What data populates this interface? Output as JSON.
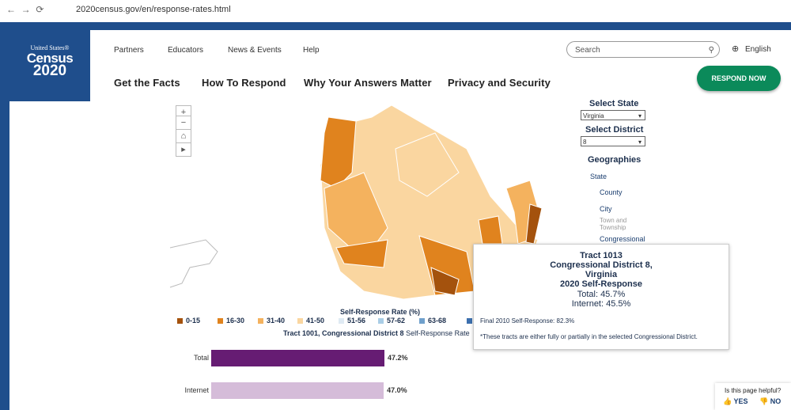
{
  "browser": {
    "url": "2020census.gov/en/response-rates.html"
  },
  "header": {
    "logo": [
      "United States®",
      "Census",
      "2020"
    ],
    "top_nav": [
      "Partners",
      "Educators",
      "News & Events",
      "Help"
    ],
    "search_placeholder": "Search",
    "language": "English",
    "main_nav": [
      "Get the Facts",
      "How To Respond",
      "Why Your Answers Matter",
      "Privacy and Security"
    ],
    "cta": "RESPOND NOW"
  },
  "sidebar": {
    "select_state_label": "Select State",
    "state": "Virginia",
    "select_district_label": "Select District",
    "district": "8",
    "geographies_title": "Geographies",
    "geographies": [
      "State",
      "County",
      "City",
      "Town and Township",
      "Congressional"
    ]
  },
  "legend": {
    "title": "Self-Response Rate (%)",
    "items": [
      {
        "label": "0-15",
        "color": "#a4520d"
      },
      {
        "label": "16-30",
        "color": "#e0831e"
      },
      {
        "label": "31-40",
        "color": "#f4b25e"
      },
      {
        "label": "41-50",
        "color": "#fad6a0"
      },
      {
        "label": "51-56",
        "color": "#dfeaf3"
      },
      {
        "label": "57-62",
        "color": "#a9cde6"
      },
      {
        "label": "63-68",
        "color": "#6fa0cc"
      }
    ]
  },
  "chart": {
    "title_bold": "Tract 1001, Congressional District 8",
    "title_rest": "Self-Response Rate",
    "bars": [
      {
        "label": "Total",
        "value": 47.2,
        "value_label": "47.2%",
        "color": "#661c73"
      },
      {
        "label": "Internet",
        "value": 47.0,
        "value_label": "47.0%",
        "color": "#d5bcd9"
      }
    ]
  },
  "tooltip": {
    "lines": [
      "Tract 1013",
      "Congressional District 8,",
      "Virginia",
      "2020 Self-Response"
    ],
    "total": "Total: 45.7%",
    "internet": "Internet: 45.5%",
    "final": "Final 2010 Self-Response: 82.3%",
    "note": "*These tracts are either fully or partially in the selected Congressional District."
  },
  "feedback": {
    "question": "Is this page helpful?",
    "yes": "YES",
    "no": "NO"
  }
}
